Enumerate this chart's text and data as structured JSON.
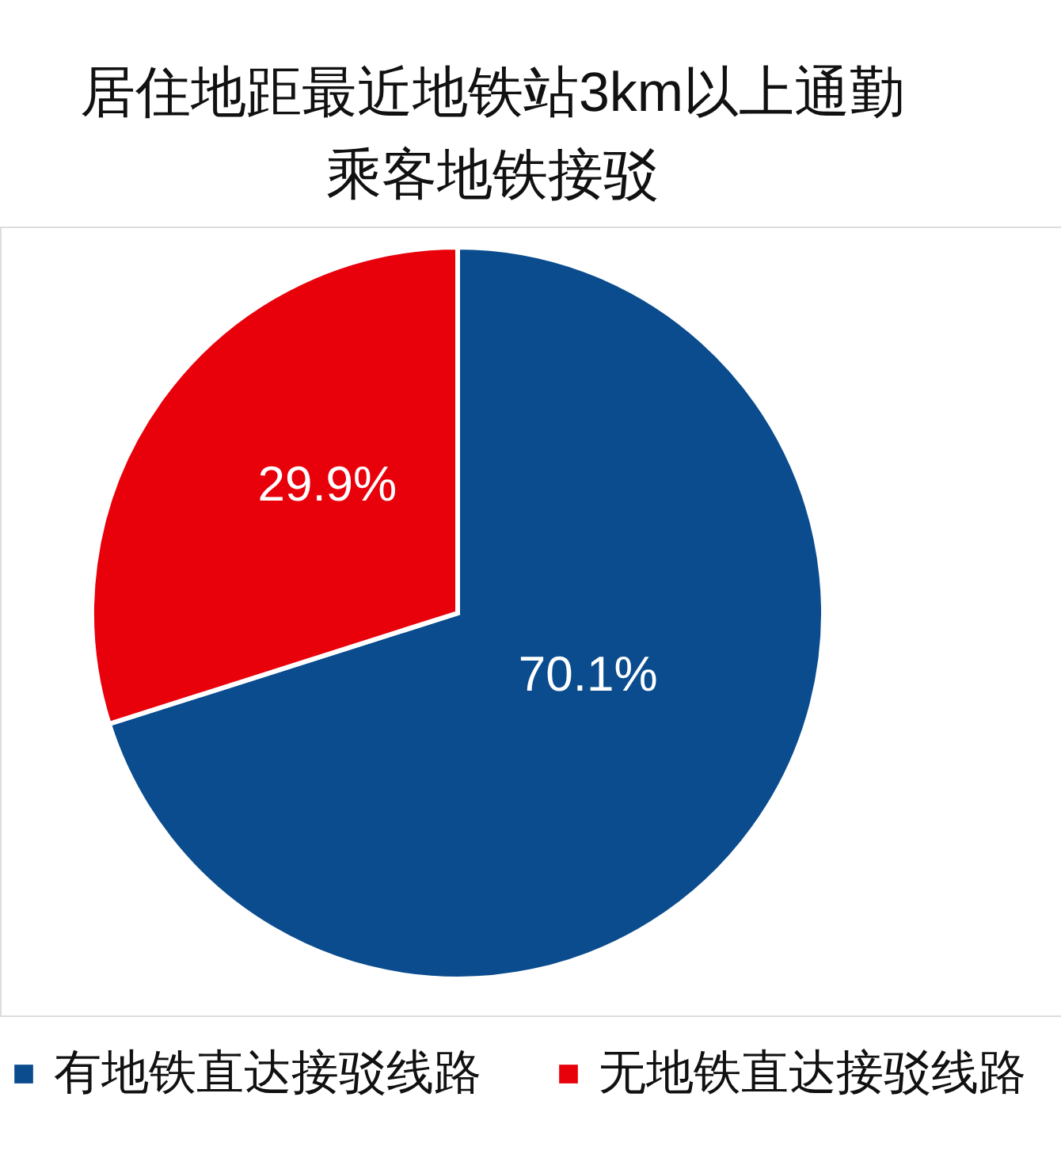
{
  "chart_data": {
    "type": "pie",
    "title": "居住地距最近地铁站3km以上通勤乘客地铁接驳",
    "categories": [
      "有地铁直达接驳线路",
      "无地铁直达接驳线路"
    ],
    "values": [
      70.1,
      29.9
    ],
    "colors": [
      "#0a4c8e",
      "#e8000b"
    ],
    "value_labels": [
      "70.1%",
      "29.9%"
    ],
    "legend": "bottom"
  }
}
